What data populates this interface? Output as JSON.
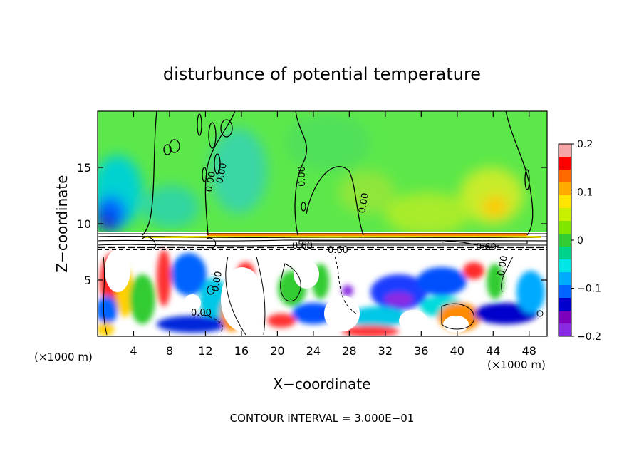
{
  "chart_data": {
    "type": "heatmap",
    "title": "disturbunce of potential temperature",
    "xlabel": "X−coordinate",
    "ylabel": "Z−coordinate",
    "x_unit_left": "(×1000 m)",
    "x_unit_right": "(×1000 m)",
    "footer": "CONTOUR INTERVAL = 3.000E−01",
    "xlim": [
      0,
      50
    ],
    "ylim": [
      0,
      20
    ],
    "x_ticks": [
      4,
      8,
      12,
      16,
      20,
      24,
      28,
      32,
      36,
      40,
      44,
      48
    ],
    "x_tick_labels": [
      "4",
      "8",
      "12",
      "16",
      "20",
      "24",
      "28",
      "32",
      "36",
      "40",
      "44",
      "48"
    ],
    "y_ticks": [
      5,
      10,
      15
    ],
    "y_tick_labels": [
      "5",
      "10",
      "15"
    ],
    "colorbar": {
      "range": [
        -0.2,
        0.2
      ],
      "ticks": [
        0.2,
        0.1,
        0,
        -0.1,
        -0.2
      ],
      "tick_labels": [
        "0.2",
        "0.1",
        "0",
        "−0.1",
        "−0.2"
      ],
      "colors": [
        "#f5a5a5",
        "#ff0000",
        "#ff6a00",
        "#ffaa00",
        "#ffe600",
        "#c8f000",
        "#80e600",
        "#33cc33",
        "#00d28c",
        "#00e6e6",
        "#00aaff",
        "#0064ff",
        "#0000cc",
        "#7d00bd",
        "#8a2be2"
      ]
    },
    "contour_labels": [
      "0.00",
      "0.00",
      "0.00",
      "0.00",
      "0.60",
      "0.60",
      "0.60",
      "0.00",
      "0.00",
      "0.00"
    ],
    "grid": false,
    "legend": "colorbar-right"
  }
}
